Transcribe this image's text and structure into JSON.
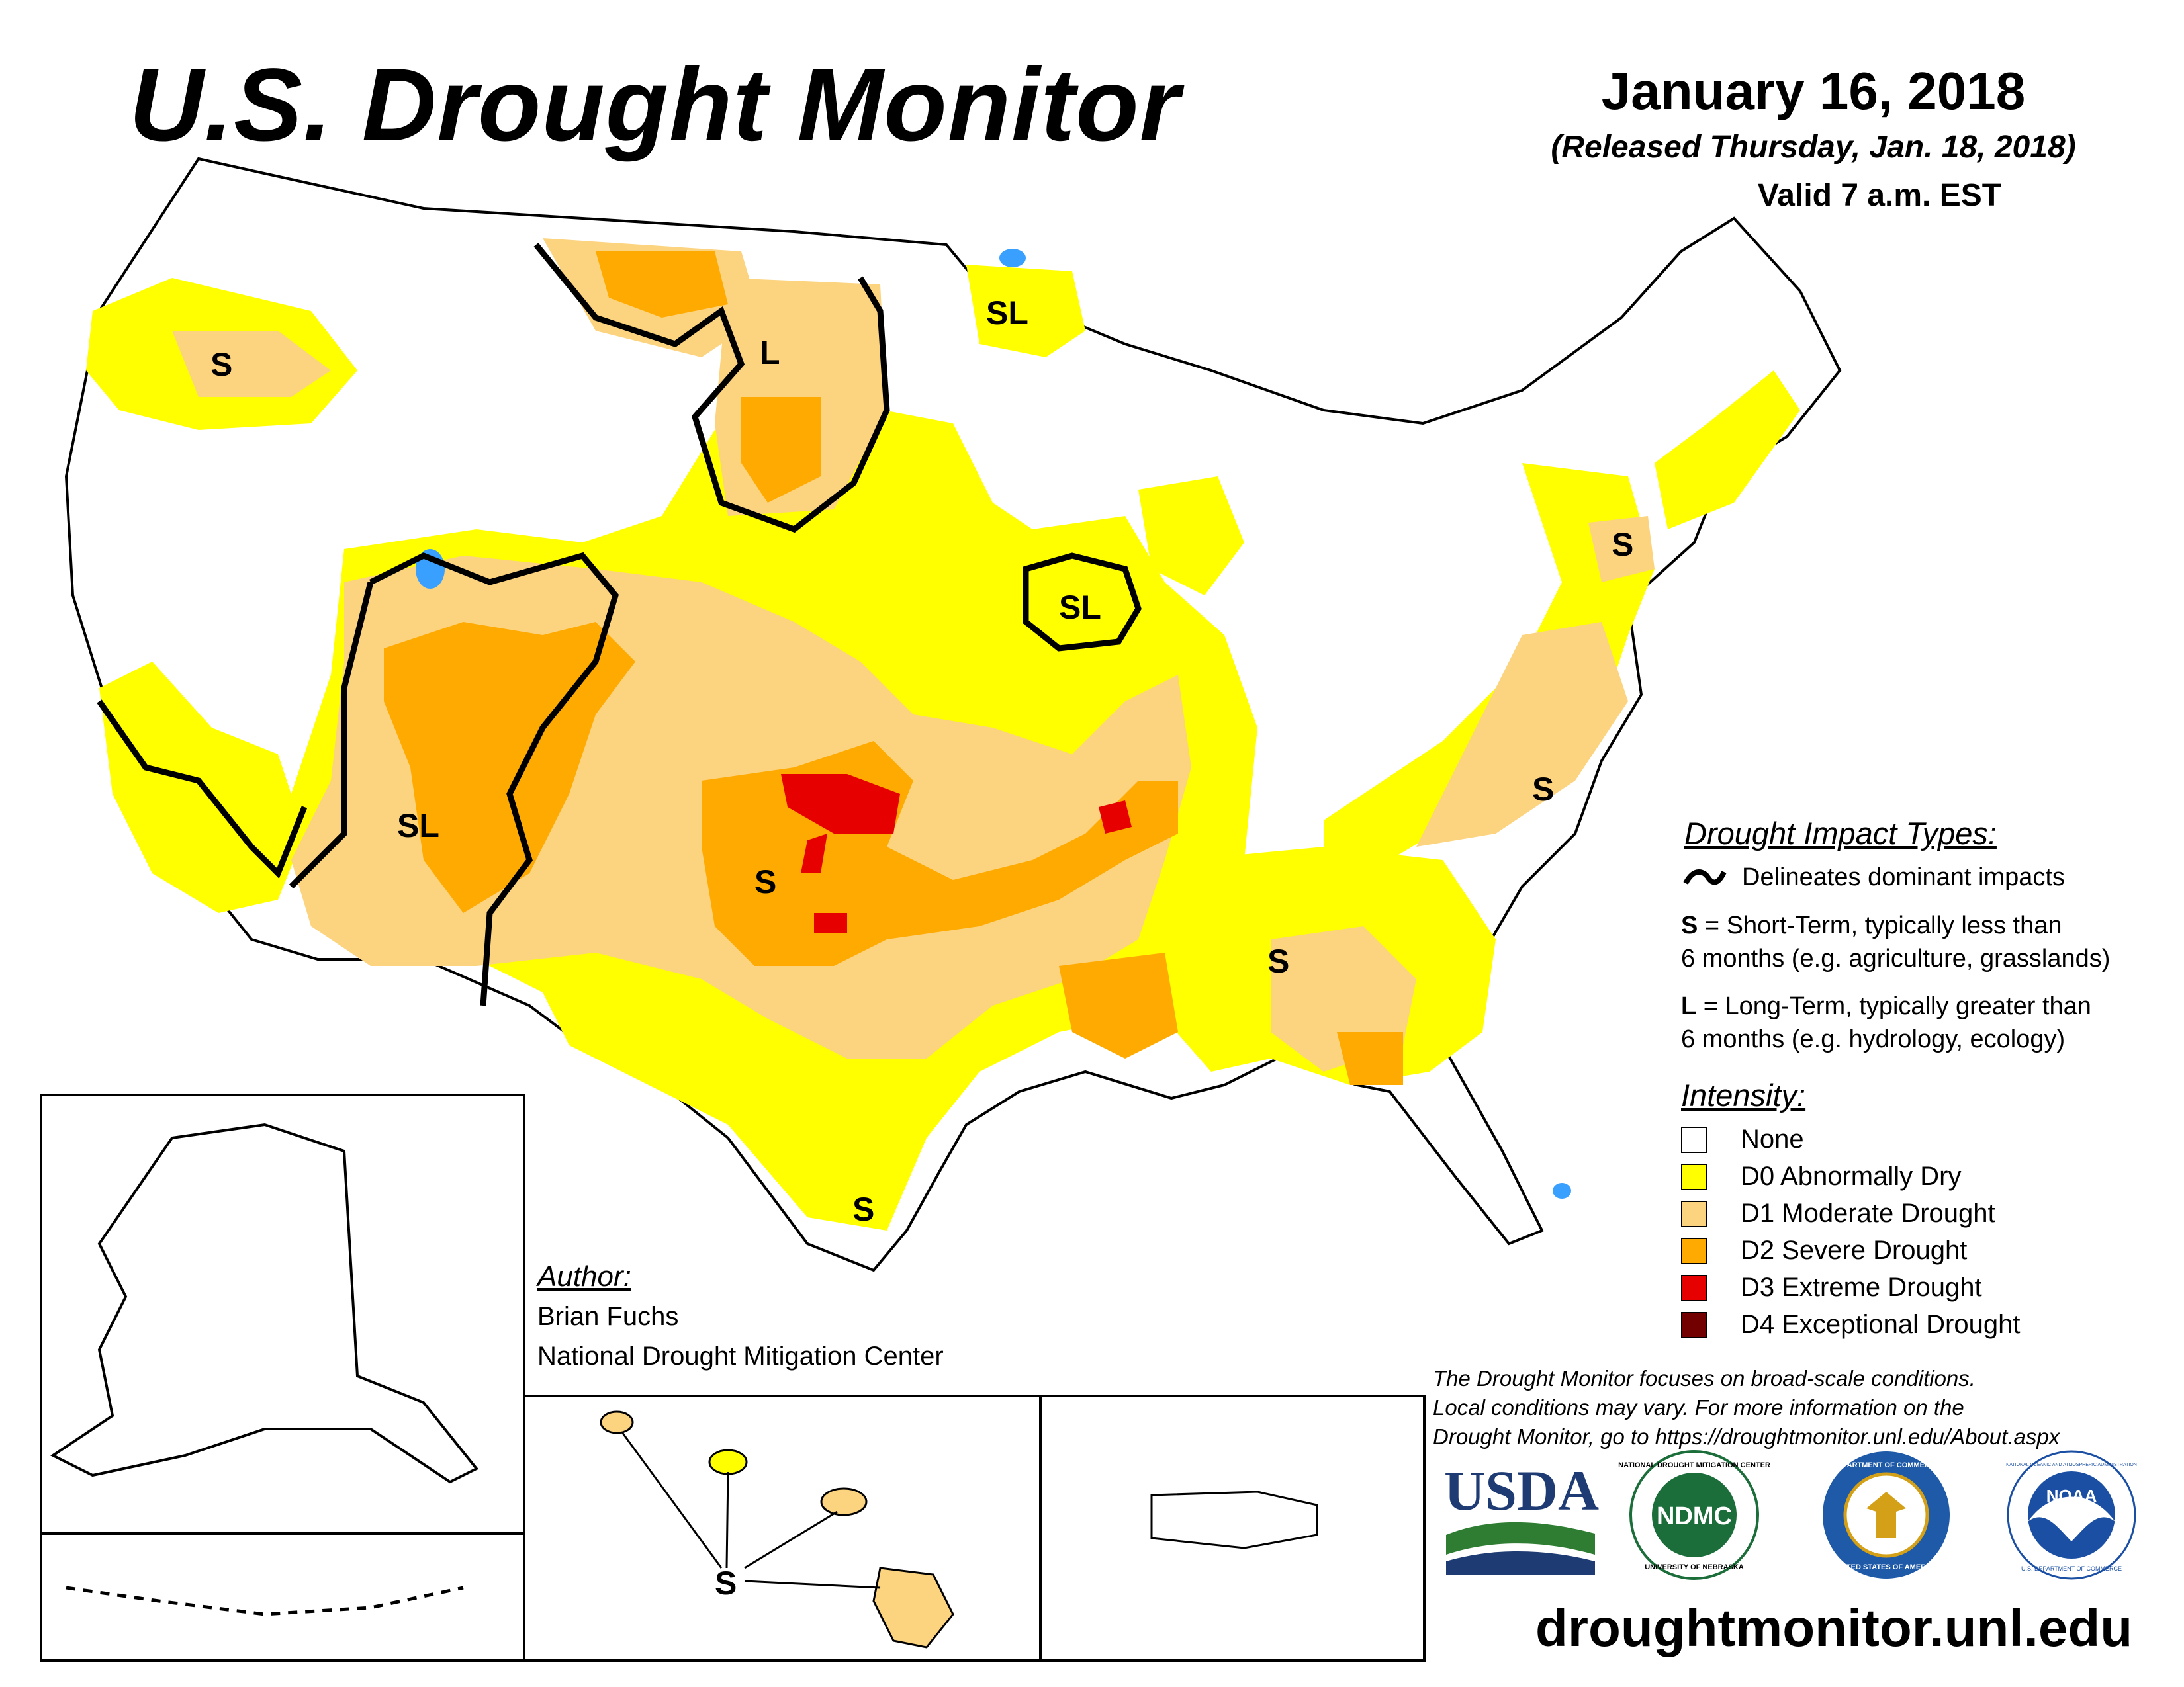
{
  "header": {
    "title": "U.S. Drought Monitor",
    "date": "January 16, 2018",
    "released": "(Released Thursday, Jan. 18, 2018)",
    "valid": "Valid 7 a.m. EST"
  },
  "impact_legend": {
    "title": "Drought Impact Types:",
    "line_desc": "Delineates dominant impacts",
    "s_key": "S",
    "s_desc_1": " = Short-Term, typically less than",
    "s_desc_2": "6 months (e.g. agriculture, grasslands)",
    "l_key": "L",
    "l_desc_1": " = Long-Term, typically greater than",
    "l_desc_2": "6 months (e.g. hydrology, ecology)"
  },
  "intensity_legend": {
    "title": "Intensity:",
    "items": [
      {
        "label": "None",
        "color": "#ffffff"
      },
      {
        "label": "D0 Abnormally Dry",
        "color": "#ffff00"
      },
      {
        "label": "D1 Moderate Drought",
        "color": "#fcd37f"
      },
      {
        "label": "D2 Severe Drought",
        "color": "#ffaa00"
      },
      {
        "label": "D3 Extreme Drought",
        "color": "#e60000"
      },
      {
        "label": "D4 Exceptional Drought",
        "color": "#730000"
      }
    ]
  },
  "map_labels": [
    {
      "id": "oregon",
      "text": "S"
    },
    {
      "id": "montana",
      "text": "L"
    },
    {
      "id": "minnesota",
      "text": "SL"
    },
    {
      "id": "iowa",
      "text": "SL"
    },
    {
      "id": "arizona",
      "text": "SL"
    },
    {
      "id": "oklahoma",
      "text": "S"
    },
    {
      "id": "pennsylvania",
      "text": "S"
    },
    {
      "id": "north-carolina",
      "text": "S"
    },
    {
      "id": "alabama",
      "text": "S"
    },
    {
      "id": "south-texas",
      "text": "S"
    },
    {
      "id": "hawaii",
      "text": "S"
    }
  ],
  "author": {
    "title": "Author:",
    "name": "Brian Fuchs",
    "organization": "National Drought Mitigation Center"
  },
  "disclaimer": [
    "The Drought Monitor focuses on broad-scale conditions.",
    "Local conditions may vary. For more information on the",
    "Drought Monitor, go to https://droughtmonitor.unl.edu/About.aspx"
  ],
  "logos": {
    "usda": "USDA",
    "ndmc": "NDMC",
    "ndmc_ring": "NATIONAL DROUGHT MITIGATION CENTER",
    "ndmc_ring_bottom": "UNIVERSITY OF NEBRASKA",
    "commerce_ring": "DEPARTMENT OF COMMERCE",
    "commerce_ring_bottom": "UNITED STATES OF AMERICA",
    "noaa": "NOAA",
    "noaa_ring": "NATIONAL OCEANIC AND ATMOSPHERIC ADMINISTRATION",
    "noaa_ring_bottom": "U.S. DEPARTMENT OF COMMERCE"
  },
  "website": "droughtmonitor.unl.edu",
  "colors": {
    "d0": "#ffff00",
    "d1": "#fcd37f",
    "d2": "#ffaa00",
    "d3": "#e60000",
    "d4": "#730000",
    "water": "#3aa0ff",
    "usda_blue": "#1f3b73",
    "usda_green": "#2e7d32",
    "ndmc_green": "#1b6e3a",
    "commerce_blue": "#1e5aa8",
    "noaa_blue": "#1a4fa3"
  }
}
